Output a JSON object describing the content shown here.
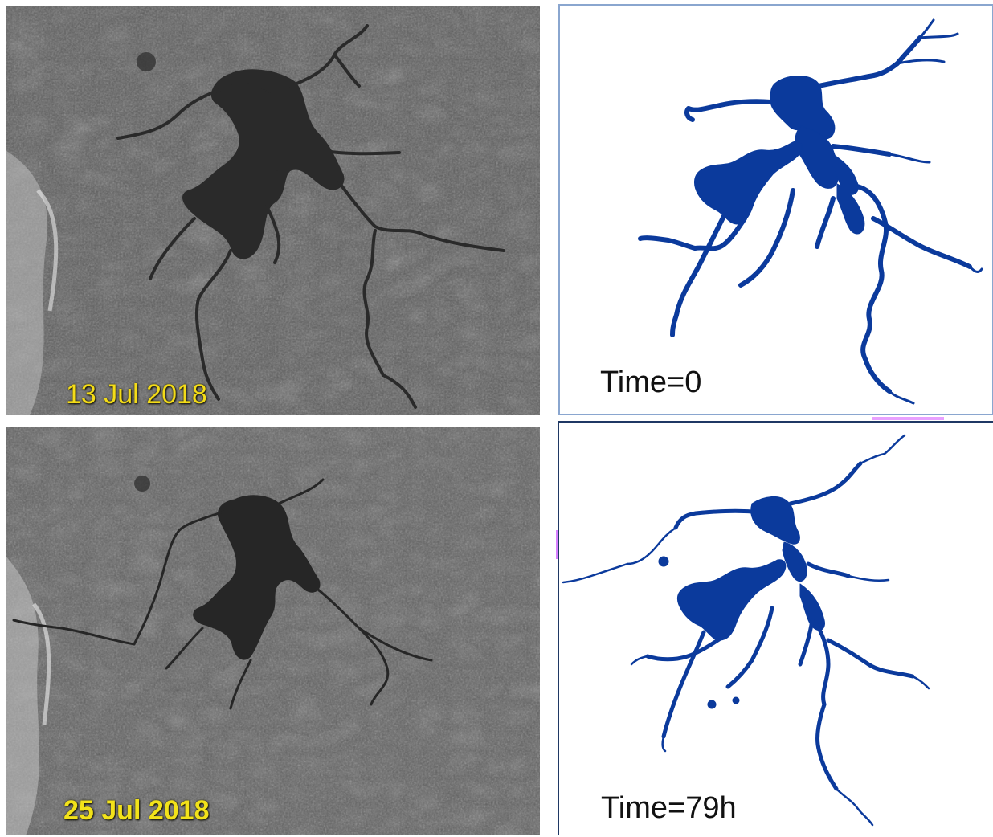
{
  "panels": {
    "sar_top": {
      "date_label": "13 Jul 2018"
    },
    "sar_bottom": {
      "date_label": "25 Jul 2018"
    },
    "map_top": {
      "time_label": "Time=0"
    },
    "map_bottom": {
      "time_label": "Time=79h"
    }
  },
  "colors": {
    "water_map": "#0a3d9e",
    "water_sar": "#2b2b2b",
    "sar_background": "#5b5b5b",
    "date_text": "#ffe600",
    "accent_magenta": "#e066ff"
  }
}
